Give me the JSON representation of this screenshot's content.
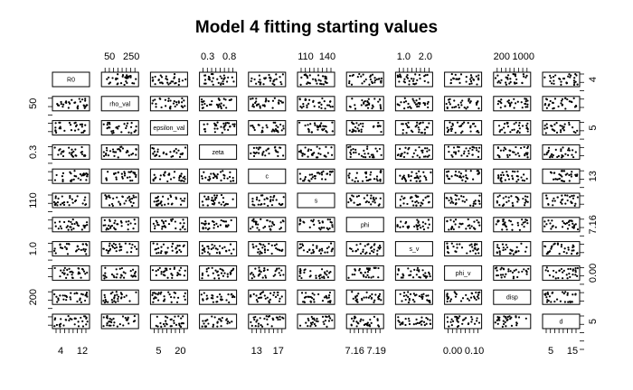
{
  "chart_data": {
    "type": "scatter",
    "title": "Model 4 fitting starting values",
    "variables": [
      "R0",
      "rho_val",
      "epsilon_val",
      "zeta",
      "c",
      "s",
      "phi",
      "s_v",
      "phi_v",
      "disp",
      "d"
    ],
    "axis_labels": {
      "top": [
        {
          "panel": 1,
          "labels": [
            "50",
            "250"
          ]
        },
        {
          "panel": 3,
          "labels": [
            "0.3",
            "0.8"
          ]
        },
        {
          "panel": 5,
          "labels": [
            "110",
            "140"
          ]
        },
        {
          "panel": 7,
          "labels": [
            "1.0",
            "2.0"
          ]
        },
        {
          "panel": 9,
          "labels": [
            "200",
            "1000"
          ]
        }
      ],
      "bottom": [
        {
          "panel": 0,
          "labels": [
            "4",
            "12"
          ]
        },
        {
          "panel": 2,
          "labels": [
            "5",
            "20"
          ]
        },
        {
          "panel": 4,
          "labels": [
            "13",
            "17"
          ]
        },
        {
          "panel": 6,
          "labels": [
            "7.16",
            "7.19"
          ]
        },
        {
          "panel": 8,
          "labels": [
            "0.00",
            "0.10"
          ]
        },
        {
          "panel": 10,
          "labels": [
            "5",
            "15"
          ]
        }
      ],
      "left": [
        {
          "panel": 1,
          "labels": [
            "50"
          ]
        },
        {
          "panel": 3,
          "labels": [
            "0.3"
          ]
        },
        {
          "panel": 5,
          "labels": [
            "110"
          ]
        },
        {
          "panel": 7,
          "labels": [
            "1.0"
          ]
        },
        {
          "panel": 9,
          "labels": [
            "200"
          ]
        }
      ],
      "right": [
        {
          "panel": 0,
          "labels": [
            "4"
          ]
        },
        {
          "panel": 2,
          "labels": [
            "5"
          ]
        },
        {
          "panel": 4,
          "labels": [
            "13"
          ]
        },
        {
          "panel": 6,
          "labels": [
            "7.16"
          ]
        },
        {
          "panel": 8,
          "labels": [
            "0.00"
          ]
        },
        {
          "panel": 10,
          "labels": [
            "5"
          ]
        }
      ]
    },
    "points_per_panel": 30,
    "grid": false,
    "legend": "none"
  }
}
